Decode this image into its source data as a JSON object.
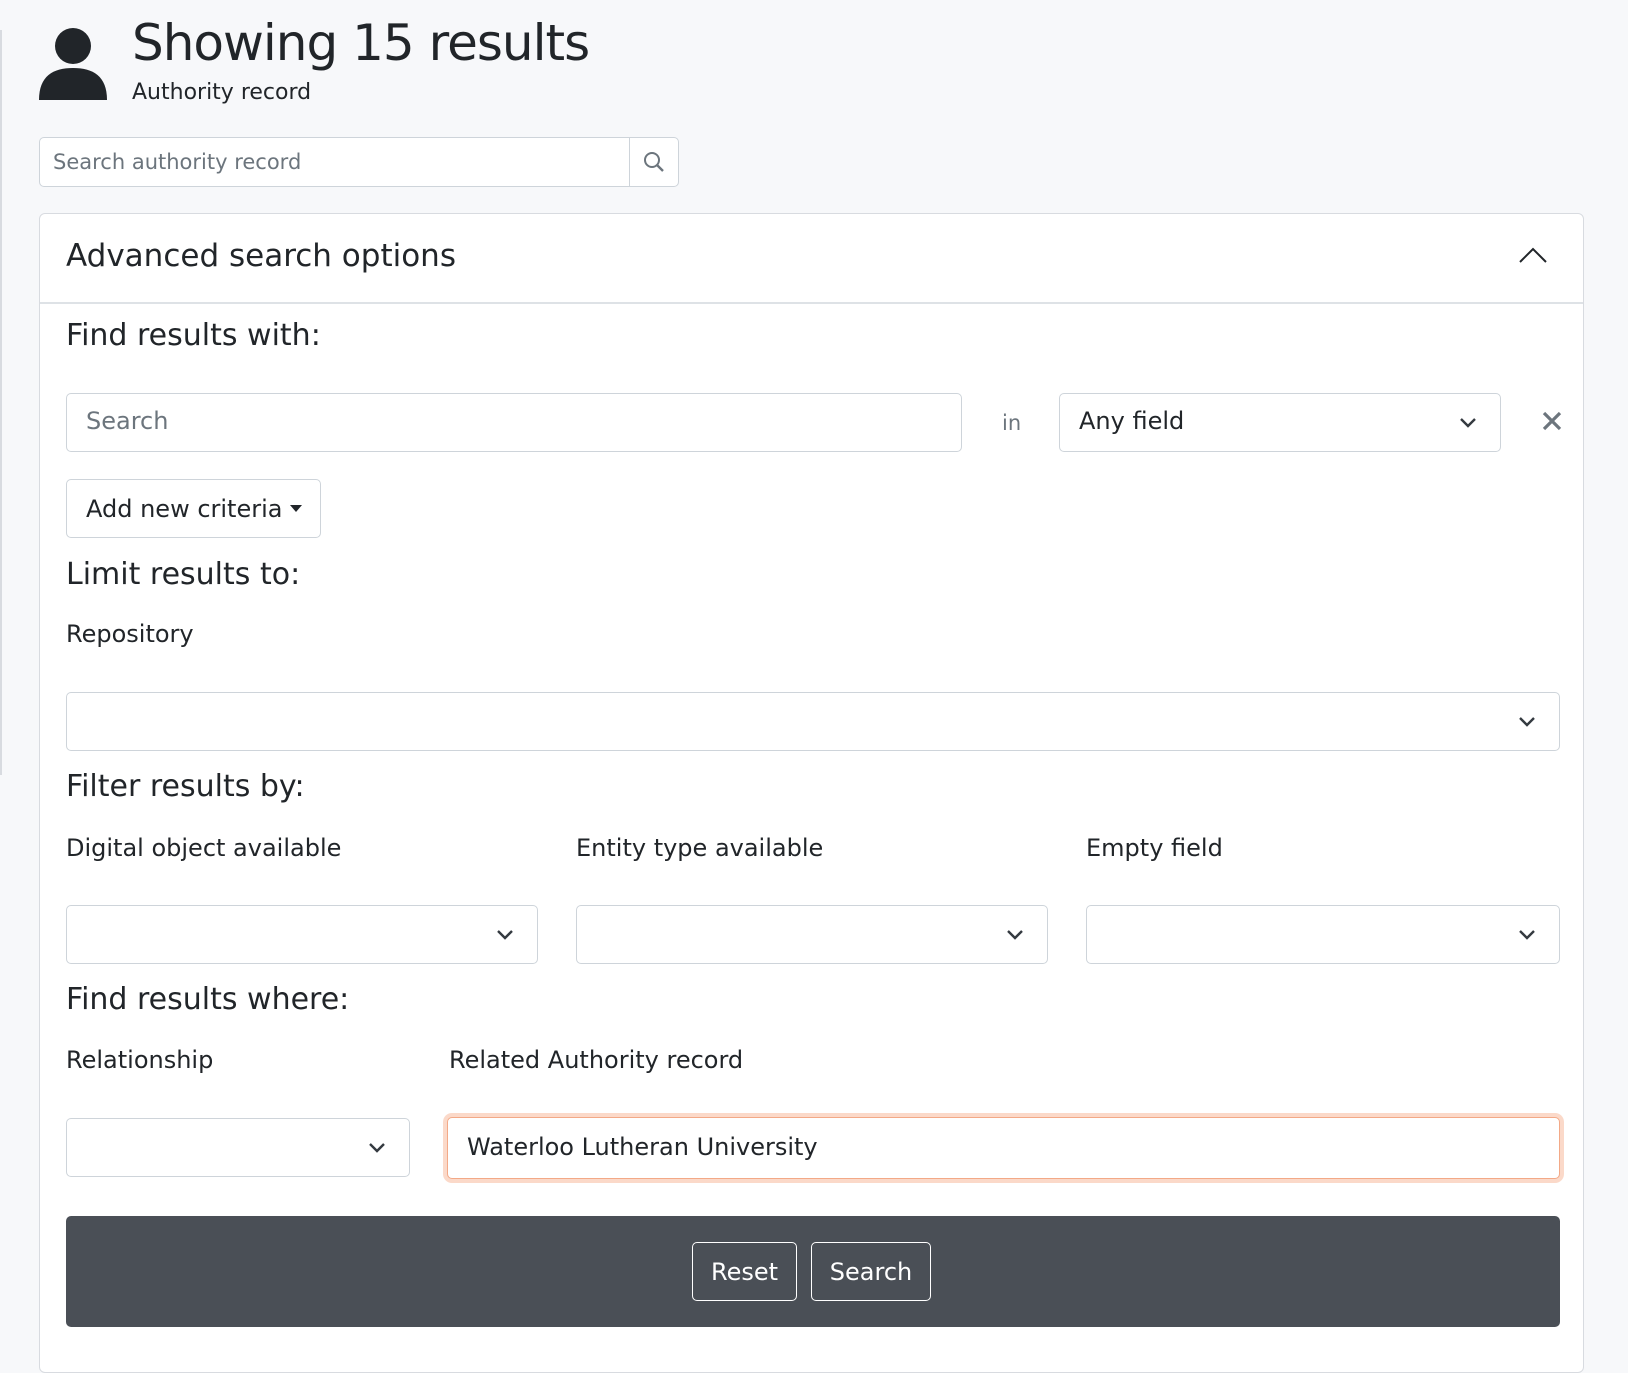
{
  "header": {
    "icon": "person-icon",
    "title": "Showing 15 results",
    "subtitle": "Authority record"
  },
  "top_search": {
    "placeholder": "Search authority record",
    "icon": "search-icon"
  },
  "advanced": {
    "title": "Advanced search options",
    "expanded": true,
    "find_with": {
      "heading": "Find results with:",
      "search_placeholder": "Search",
      "in_label": "in",
      "field_select": "Any field",
      "add_criteria": "Add new criteria"
    },
    "limit": {
      "heading": "Limit results to:",
      "repository_label": "Repository",
      "repository_value": ""
    },
    "filter": {
      "heading": "Filter results by:",
      "digital_object_label": "Digital object available",
      "entity_type_label": "Entity type available",
      "empty_field_label": "Empty field"
    },
    "where": {
      "heading": "Find results where:",
      "relationship_label": "Relationship",
      "related_label": "Related Authority record",
      "related_value": "Waterloo Lutheran University"
    },
    "buttons": {
      "reset": "Reset",
      "search": "Search"
    }
  },
  "colors": {
    "footer_bg": "#4a4f56",
    "focus_ring": "#f3a987",
    "page_bg": "#f7f8fa"
  }
}
